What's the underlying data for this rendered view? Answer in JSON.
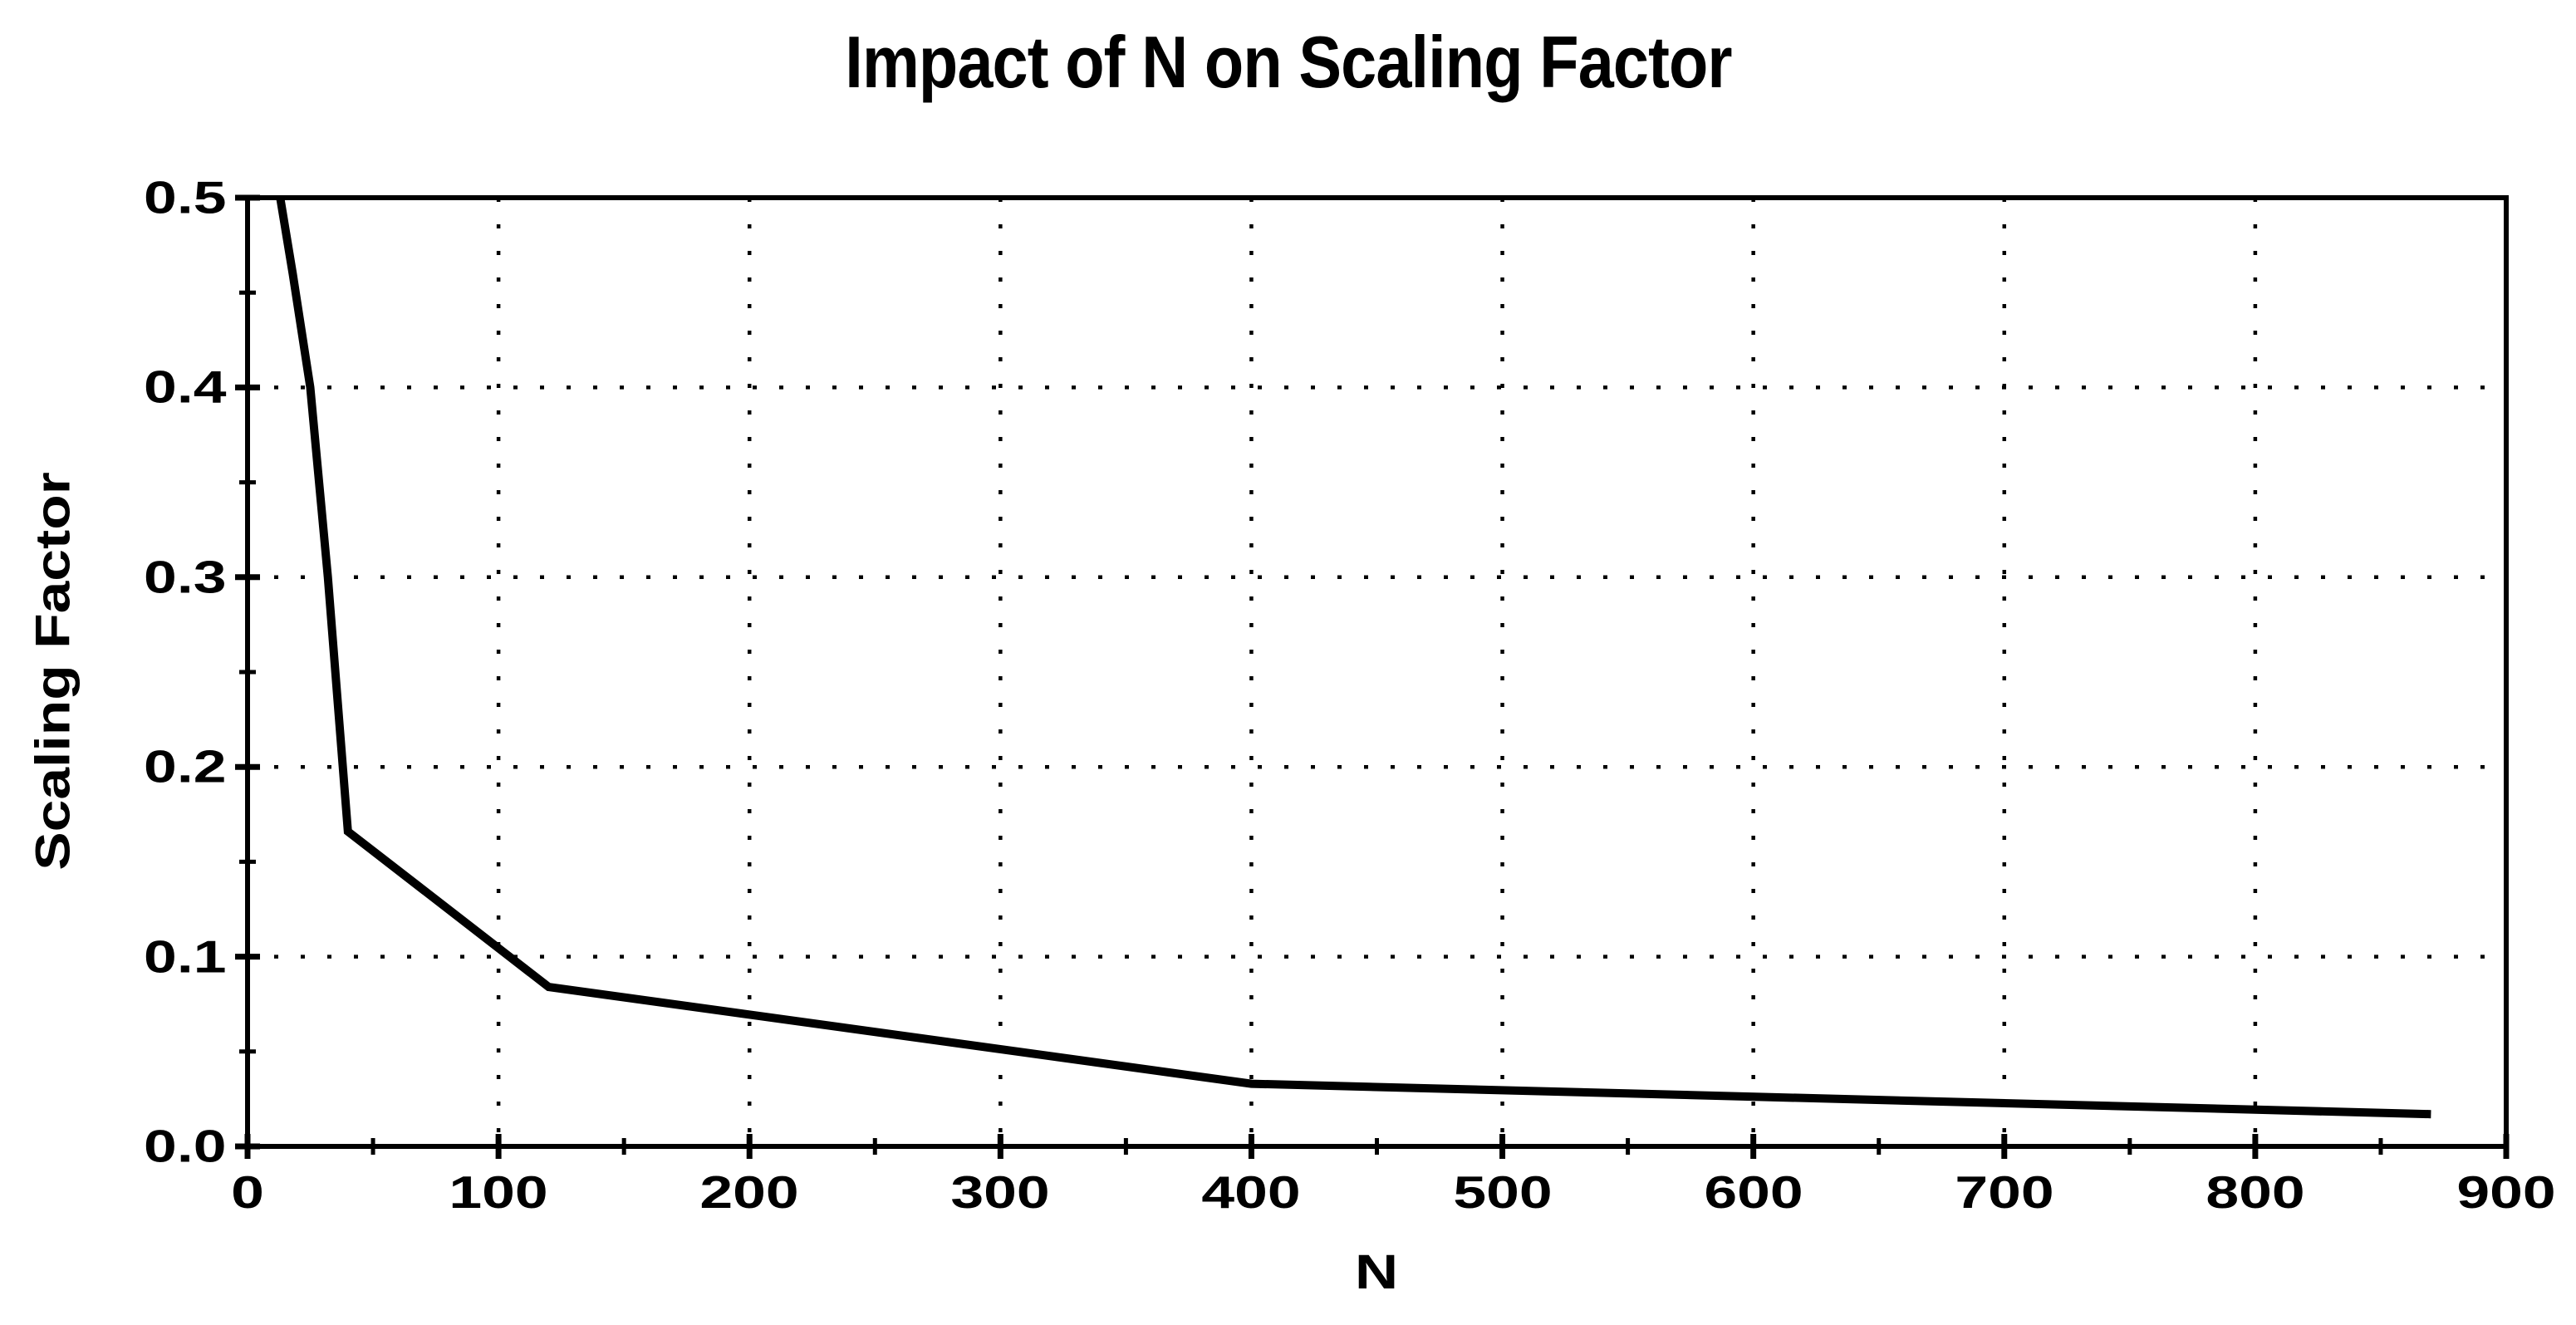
{
  "page": {
    "background_color": "#ffffff",
    "text_color": "#000000"
  },
  "chart_data": {
    "type": "line",
    "title": "Impact of N on Scaling Factor",
    "xlabel": "N",
    "ylabel": "Scaling Factor",
    "xlim": [
      0,
      900
    ],
    "ylim": [
      0.0,
      0.5
    ],
    "x_tick_values": [
      0,
      100,
      200,
      300,
      400,
      500,
      600,
      700,
      800,
      900
    ],
    "x_tick_labels": [
      "0",
      "100",
      "200",
      "300",
      "400",
      "500",
      "600",
      "700",
      "800",
      "900"
    ],
    "x_minor_tick_step": 50,
    "y_tick_values": [
      0.0,
      0.1,
      0.2,
      0.3,
      0.4,
      0.5
    ],
    "y_tick_labels": [
      "0.0",
      "0.1",
      "0.2",
      "0.3",
      "0.4",
      "0.5"
    ],
    "y_minor_tick_step": 0.05,
    "grid": {
      "shown": true,
      "style": "dotted",
      "at_major_ticks_only": true
    },
    "frame": "full-box",
    "legend": "none",
    "line_color": "#000000",
    "series": [
      {
        "name": "Scaling Factor",
        "color": "#000000",
        "points": [
          [
            13,
            0.5
          ],
          [
            18,
            0.46
          ],
          [
            25,
            0.4
          ],
          [
            32,
            0.3
          ],
          [
            40,
            0.166
          ],
          [
            120,
            0.084
          ],
          [
            400,
            0.033
          ],
          [
            870,
            0.017
          ]
        ]
      }
    ]
  }
}
